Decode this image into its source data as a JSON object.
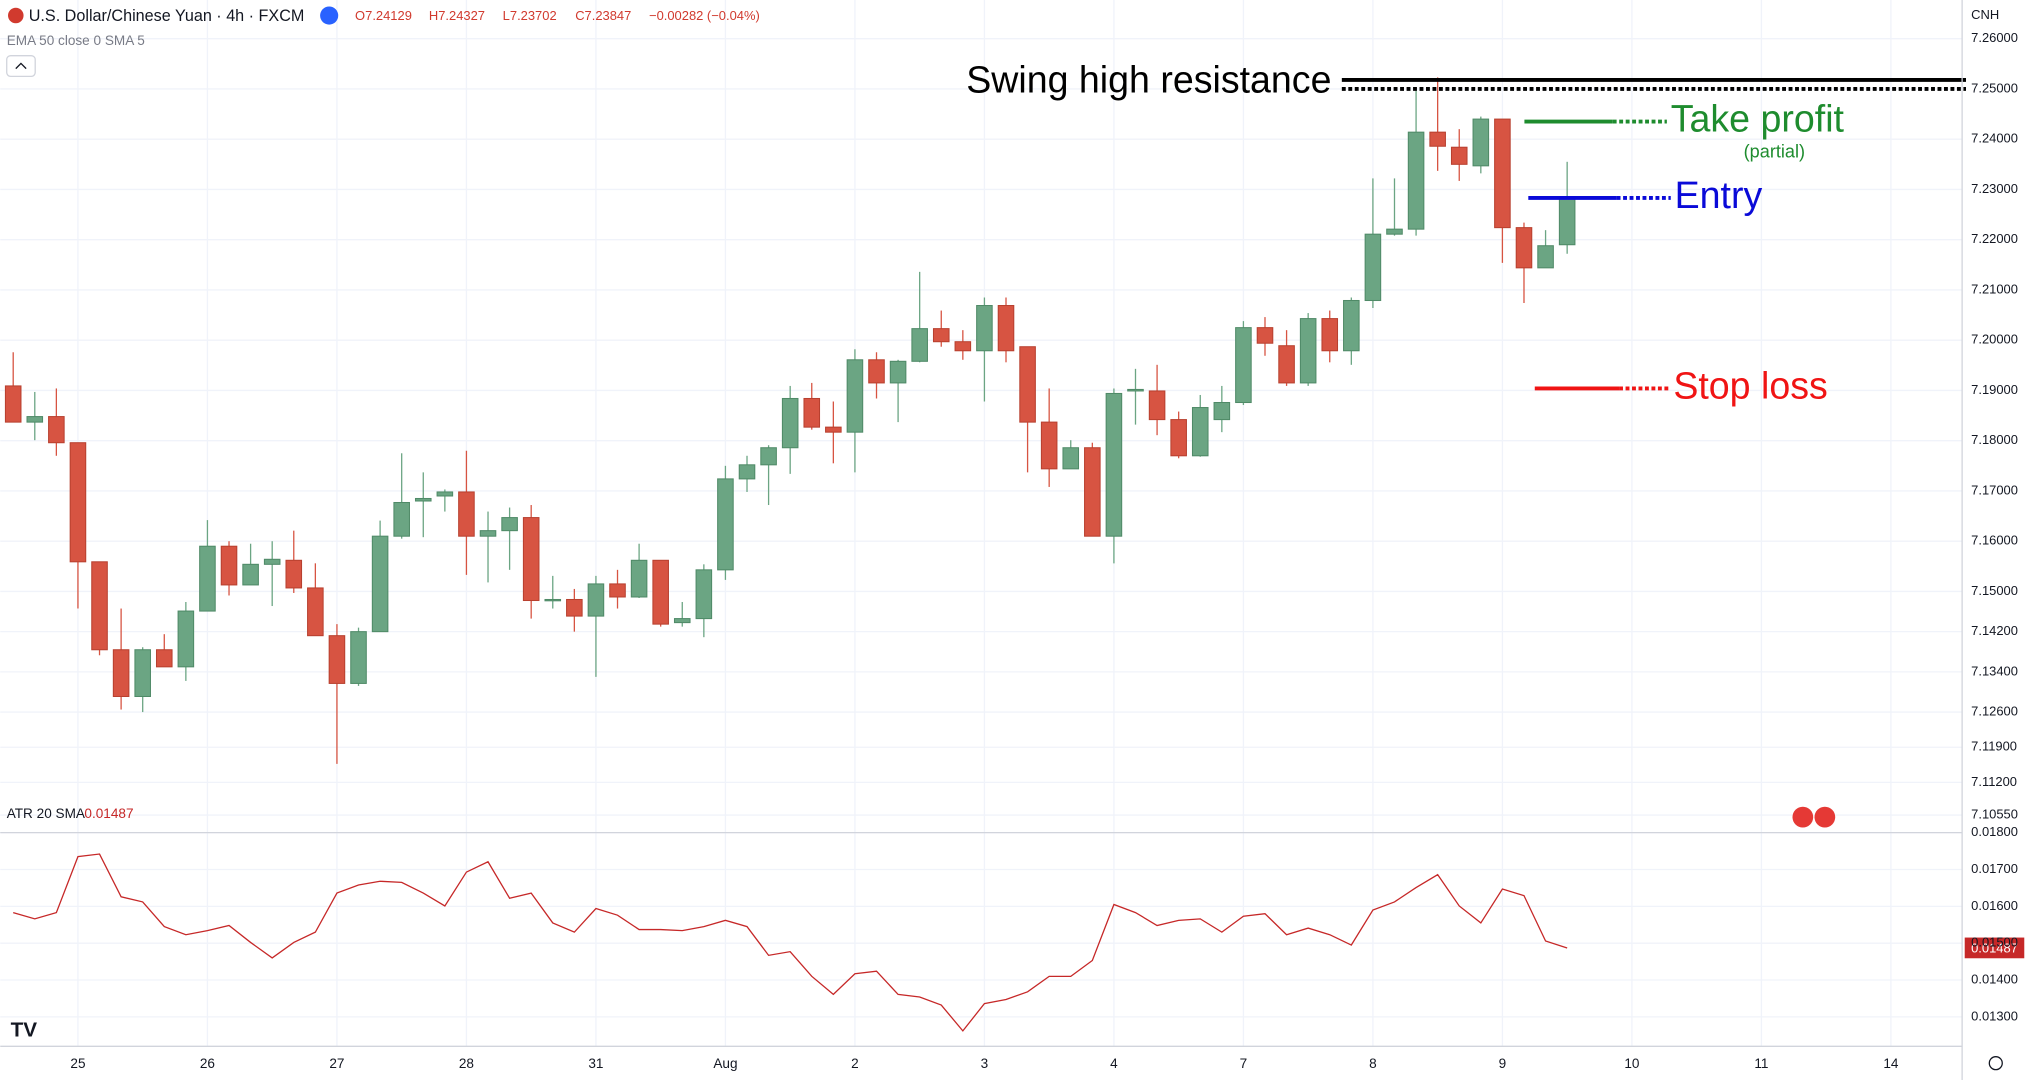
{
  "header": {
    "symbol": "U.S. Dollar/Chinese Yuan · 4h · FXCM",
    "open": "O7.24129",
    "high": "H7.24327",
    "low": "L7.23702",
    "close": "C7.23847",
    "change": "−0.00282 (−0.04%)",
    "indicator": "EMA 50 close 0 SMA 5"
  },
  "chart_data": [
    {
      "type": "candlestick",
      "currency": "CNH",
      "up_color": "#6ba583",
      "down_color": "#d75442",
      "categories": [
        null,
        null,
        null,
        "25",
        null,
        null,
        null,
        null,
        null,
        "26",
        null,
        null,
        null,
        null,
        null,
        "27",
        null,
        null,
        null,
        null,
        null,
        "28",
        null,
        null,
        null,
        null,
        null,
        "31",
        null,
        null,
        null,
        null,
        null,
        "Aug",
        null,
        null,
        null,
        null,
        null,
        "2",
        null,
        null,
        null,
        null,
        null,
        "3",
        null,
        null,
        null,
        null,
        null,
        "4",
        null,
        null,
        null,
        null,
        null,
        "7",
        null,
        null,
        null,
        null,
        null,
        "8",
        null,
        null,
        null,
        null,
        null,
        "9",
        null,
        null,
        null,
        null,
        null,
        "10",
        null,
        null,
        null,
        null,
        null,
        "11",
        null,
        null,
        null,
        null,
        null,
        "14",
        null,
        null
      ],
      "open": [
        7.1909,
        7.1837,
        7.1848,
        7.1796,
        7.1559,
        7.1384,
        7.1291,
        7.1384,
        7.135,
        7.1461,
        7.159,
        7.1513,
        7.1554,
        7.1562,
        7.1507,
        7.1412,
        7.1317,
        7.142,
        7.161,
        7.168,
        7.169,
        7.1698,
        7.161,
        7.1621,
        7.1647,
        7.1482,
        7.1484,
        7.1451,
        7.1515,
        7.1489,
        7.1562,
        7.1438,
        7.1446,
        7.1543,
        7.1724,
        7.1752,
        7.1786,
        7.1884,
        7.1827,
        7.1817,
        7.1961,
        7.1915,
        7.1958,
        7.2023,
        7.1997,
        7.1979,
        7.2069,
        7.1987,
        7.1837,
        7.1744,
        7.1786,
        7.161,
        7.1899,
        7.1899,
        7.1842,
        7.177,
        7.1842,
        7.1876,
        7.2025,
        7.1989,
        7.1915,
        7.2043,
        7.1979,
        7.2079,
        7.2211,
        7.2221,
        7.2414,
        7.2384,
        7.2347,
        7.244,
        7.2224,
        7.2144,
        7.219,
        null,
        null,
        null,
        null,
        null,
        null,
        null,
        null,
        null,
        null,
        null,
        null,
        null,
        null,
        null,
        null,
        null
      ],
      "high": [
        7.1976,
        7.1897,
        7.1904,
        7.1796,
        7.1559,
        7.1466,
        7.1389,
        7.1415,
        7.1479,
        7.1642,
        7.16,
        7.1595,
        7.16,
        7.1621,
        7.1556,
        7.1435,
        7.1428,
        7.1641,
        7.1775,
        7.1737,
        7.1703,
        7.178,
        7.1659,
        7.1667,
        7.1672,
        7.1531,
        7.1505,
        7.1531,
        7.1543,
        7.1595,
        7.1562,
        7.1479,
        7.1554,
        7.175,
        7.177,
        7.1791,
        7.1909,
        7.1915,
        7.1878,
        7.1982,
        7.1976,
        7.1961,
        7.2136,
        7.2059,
        7.202,
        7.2085,
        7.2085,
        7.1987,
        7.1904,
        7.1801,
        7.1796,
        7.1904,
        7.1943,
        7.1951,
        7.1858,
        7.1891,
        7.1909,
        7.2038,
        7.2046,
        7.202,
        7.2054,
        7.2059,
        7.2085,
        7.2322,
        7.2322,
        7.2502,
        7.2523,
        7.242,
        7.2445,
        7.244,
        7.2234,
        7.2219,
        7.2355,
        null,
        null,
        null,
        null,
        null,
        null,
        null,
        null,
        null,
        null,
        null,
        null,
        null,
        null,
        null,
        null,
        null
      ],
      "low": [
        7.1837,
        7.1801,
        7.177,
        7.1466,
        7.1373,
        7.1265,
        7.126,
        7.135,
        7.1322,
        7.1461,
        7.1492,
        7.1513,
        7.1471,
        7.1497,
        7.1412,
        7.1157,
        7.1312,
        7.142,
        7.1605,
        7.1608,
        7.1659,
        7.1533,
        7.1518,
        7.1543,
        7.1446,
        7.1466,
        7.142,
        7.133,
        7.1466,
        7.1487,
        7.143,
        7.143,
        7.1409,
        7.1523,
        7.1698,
        7.1672,
        7.1734,
        7.1822,
        7.1755,
        7.1737,
        7.1884,
        7.1837,
        7.1956,
        7.1987,
        7.1961,
        7.1878,
        7.1956,
        7.1737,
        7.1708,
        7.1744,
        7.161,
        7.1556,
        7.1832,
        7.1811,
        7.1765,
        7.1768,
        7.1817,
        7.1871,
        7.1969,
        7.1909,
        7.1909,
        7.1956,
        7.1951,
        7.2064,
        7.2208,
        7.2208,
        7.2337,
        7.2317,
        7.2332,
        7.2154,
        7.2074,
        7.2144,
        7.2172,
        null,
        null,
        null,
        null,
        null,
        null,
        null,
        null,
        null,
        null,
        null,
        null,
        null,
        null,
        null,
        null,
        null
      ],
      "close": [
        7.1837,
        7.1848,
        7.1796,
        7.1559,
        7.1384,
        7.1291,
        7.1384,
        7.135,
        7.1461,
        7.159,
        7.1513,
        7.1554,
        7.1564,
        7.1507,
        7.1412,
        7.1317,
        7.142,
        7.161,
        7.1677,
        7.1685,
        7.1698,
        7.161,
        7.1621,
        7.1647,
        7.1482,
        7.1484,
        7.1451,
        7.1515,
        7.1489,
        7.1562,
        7.1435,
        7.1446,
        7.1543,
        7.1724,
        7.1752,
        7.1786,
        7.1884,
        7.1827,
        7.1817,
        7.1961,
        7.1915,
        7.1958,
        7.2023,
        7.1997,
        7.1979,
        7.2069,
        7.1979,
        7.1837,
        7.1744,
        7.1786,
        7.161,
        7.1894,
        7.1902,
        7.1842,
        7.177,
        7.1866,
        7.1876,
        7.2025,
        7.1994,
        7.1915,
        7.2043,
        7.1979,
        7.2079,
        7.2211,
        7.2221,
        7.2414,
        7.2386,
        7.235,
        7.244,
        7.2224,
        7.2144,
        7.2188,
        7.2283,
        null,
        null,
        null,
        null,
        null,
        null,
        null,
        null,
        null,
        null,
        null,
        null,
        null,
        null,
        null,
        null,
        null
      ],
      "ylim": [
        7.102,
        7.2677
      ],
      "yticks": [
        {
          "value": 7.26,
          "label": "7.26000"
        },
        {
          "value": 7.25,
          "label": "7.25000"
        },
        {
          "value": 7.24,
          "label": "7.24000"
        },
        {
          "value": 7.23,
          "label": "7.23000"
        },
        {
          "value": 7.22,
          "label": "7.22000"
        },
        {
          "value": 7.21,
          "label": "7.21000"
        },
        {
          "value": 7.2,
          "label": "7.20000"
        },
        {
          "value": 7.19,
          "label": "7.19000"
        },
        {
          "value": 7.18,
          "label": "7.18000"
        },
        {
          "value": 7.17,
          "label": "7.17000"
        },
        {
          "value": 7.16,
          "label": "7.16000"
        },
        {
          "value": 7.15,
          "label": "7.15000"
        },
        {
          "value": 7.142,
          "label": "7.14200"
        },
        {
          "value": 7.134,
          "label": "7.13400"
        },
        {
          "value": 7.126,
          "label": "7.12600"
        },
        {
          "value": 7.119,
          "label": "7.11900"
        },
        {
          "value": 7.112,
          "label": "7.11200"
        },
        {
          "value": 7.1055,
          "label": "7.10550"
        }
      ],
      "grid": true,
      "annotations": [
        {
          "text": "Swing high resistance",
          "color": "#000000",
          "levels": [
            7.2518,
            7.25
          ]
        },
        {
          "text": "Take profit",
          "note": "(partial)",
          "color": "#1e8c2e",
          "levels": [
            7.2435
          ]
        },
        {
          "text": "Entry",
          "color": "#0a0ad8",
          "levels": [
            7.2283
          ]
        },
        {
          "text": "Stop loss",
          "color": "#f01414",
          "levels": [
            7.1904
          ]
        }
      ]
    },
    {
      "type": "line",
      "title": "ATR 20 SMA",
      "series": [
        {
          "name": "ATR",
          "color": "#c62828",
          "values": [
            0.01583,
            0.01566,
            0.01583,
            0.01735,
            0.01742,
            0.01626,
            0.01612,
            0.01545,
            0.01523,
            0.01534,
            0.01548,
            0.01502,
            0.0146,
            0.01502,
            0.0153,
            0.01636,
            0.01658,
            0.01668,
            0.01665,
            0.01636,
            0.01601,
            0.01693,
            0.01721,
            0.01622,
            0.01636,
            0.01555,
            0.0153,
            0.01594,
            0.01576,
            0.01537,
            0.01537,
            0.01534,
            0.01545,
            0.01562,
            0.01545,
            0.01467,
            0.01477,
            0.0141,
            0.01361,
            0.01417,
            0.01424,
            0.01361,
            0.01354,
            0.01332,
            0.01262,
            0.01336,
            0.01347,
            0.01368,
            0.0141,
            0.0141,
            0.01453,
            0.01605,
            0.01583,
            0.01548,
            0.01562,
            0.01566,
            0.0153,
            0.01573,
            0.0158,
            0.01523,
            0.01541,
            0.01523,
            0.01495,
            0.0159,
            0.01612,
            0.01651,
            0.01686,
            0.01601,
            0.01555,
            0.01647,
            0.01629,
            0.01506,
            0.01487
          ]
        }
      ],
      "ylim": [
        0.0122,
        0.018
      ],
      "yticks": [
        {
          "value": 0.018,
          "label": "0.01800"
        },
        {
          "value": 0.017,
          "label": "0.01700"
        },
        {
          "value": 0.016,
          "label": "0.01600"
        },
        {
          "value": 0.015,
          "label": "0.01500"
        },
        {
          "value": 0.014,
          "label": "0.01400"
        },
        {
          "value": 0.013,
          "label": "0.01300"
        }
      ]
    }
  ]
}
